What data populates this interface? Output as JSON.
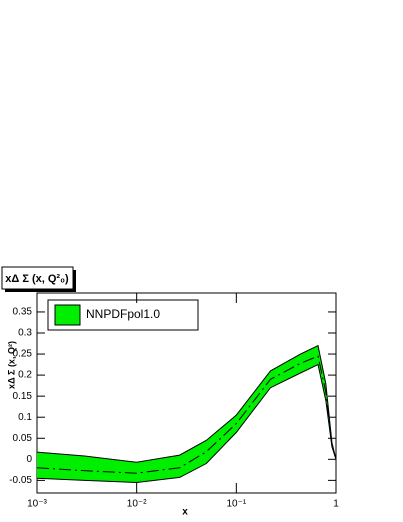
{
  "chart_data": {
    "type": "band",
    "title": "xΔ Σ (x, Q²₀)",
    "x_label": "x",
    "y_label": "xΔ Σ (x, Q²)",
    "legend": "NNPDFpol1.0",
    "color": "#00ee00",
    "log_x": true,
    "x": [
      0.001,
      0.003,
      0.01,
      0.027,
      0.05,
      0.1,
      0.22,
      0.44,
      0.66,
      0.79,
      0.91,
      1
    ],
    "upper": [
      0.017,
      0.008,
      -0.007,
      0.01,
      0.045,
      0.105,
      0.21,
      0.25,
      0.27,
      0.18,
      0.04,
      0
    ],
    "lower": [
      -0.045,
      -0.05,
      -0.055,
      -0.043,
      -0.01,
      0.064,
      0.17,
      0.205,
      0.225,
      0.14,
      0.03,
      0
    ],
    "central": [
      -0.02,
      -0.027,
      -0.033,
      -0.02,
      0.018,
      0.085,
      0.19,
      0.228,
      0.245,
      0.16,
      0.035,
      0
    ],
    "xlim": [
      0.001,
      1
    ],
    "xticks": [
      {
        "value": 0.001,
        "label": "10⁻³"
      },
      {
        "value": 0.01,
        "label": "10⁻²"
      },
      {
        "value": 0.1,
        "label": "10⁻¹"
      },
      1
    ],
    "ylim": [
      -0.08,
      0.395
    ],
    "yticks": [
      -0.05,
      0,
      0.05,
      0.1,
      0.15,
      0.2,
      0.25,
      0.3,
      0.35
    ]
  }
}
